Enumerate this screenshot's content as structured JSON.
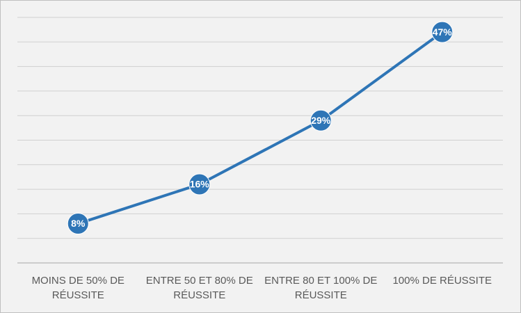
{
  "chart_data": {
    "type": "line",
    "categories": [
      "MOINS DE 50% DE RÉUSSITE",
      "ENTRE 50 ET 80% DE RÉUSSITE",
      "ENTRE 80 ET 100% DE RÉUSSITE",
      "100% DE RÉUSSITE"
    ],
    "values": [
      8,
      16,
      29,
      47
    ],
    "value_labels": [
      "8%",
      "16%",
      "29%",
      "47%"
    ],
    "color": "#2e75b6",
    "ylim": [
      0,
      50
    ],
    "yticks": [
      0,
      5,
      10,
      15,
      20,
      25,
      30,
      35,
      40,
      45,
      50
    ],
    "grid": true
  }
}
